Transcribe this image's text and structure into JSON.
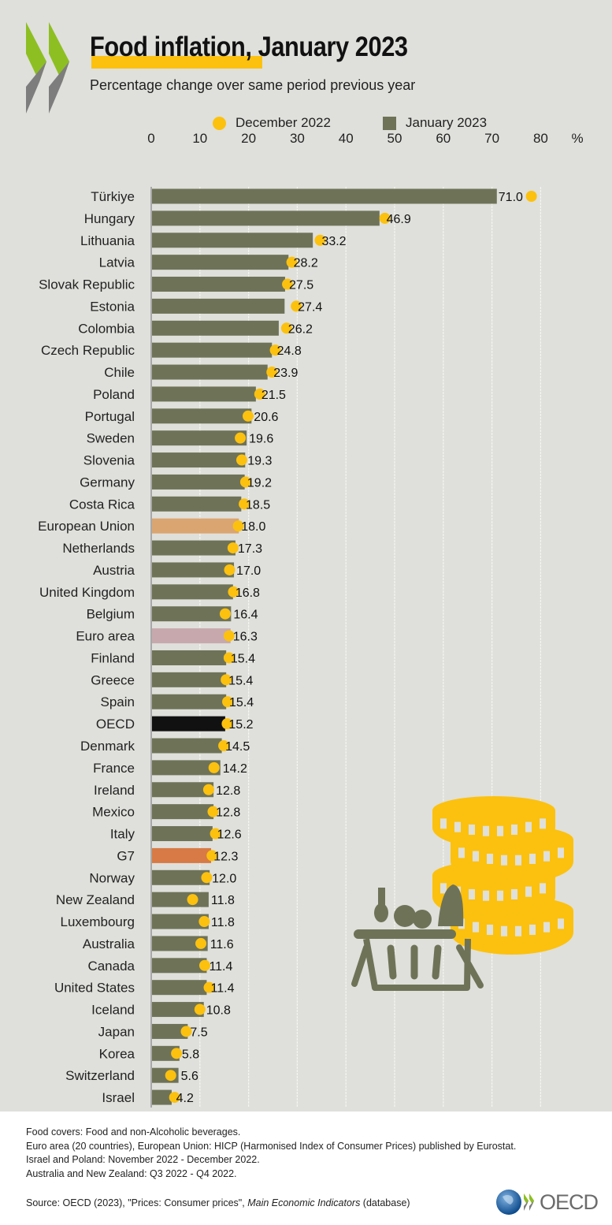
{
  "header": {
    "title": "Food inflation, January 2023",
    "subtitle": "Percentage change over same period previous year"
  },
  "legend": {
    "dec": "December 2022",
    "jan": "January 2023"
  },
  "colors": {
    "background": "#dfe0db",
    "bar": "#6e7358",
    "dot": "#fcc10e",
    "eu": "#dba572",
    "euro_area": "#c7a9ad",
    "oecd": "#111111",
    "g7": "#d87a45"
  },
  "chart_data": {
    "type": "bar",
    "orientation": "horizontal",
    "title": "Food inflation, January 2023",
    "subtitle": "Percentage change over same period previous year",
    "xlabel": "%",
    "xlim": [
      0,
      80
    ],
    "xticks": [
      "0",
      "10",
      "20",
      "30",
      "40",
      "50",
      "60",
      "70",
      "80"
    ],
    "unit_label": "%",
    "grid": true,
    "legend_position": "top",
    "categories": [
      "Türkiye",
      "Hungary",
      "Lithuania",
      "Latvia",
      "Slovak Republic",
      "Estonia",
      "Colombia",
      "Czech Republic",
      "Chile",
      "Poland",
      "Portugal",
      "Sweden",
      "Slovenia",
      "Germany",
      "Costa Rica",
      "European Union",
      "Netherlands",
      "Austria",
      "United Kingdom",
      "Belgium",
      "Euro area",
      "Finland",
      "Greece",
      "Spain",
      "OECD",
      "Denmark",
      "France",
      "Ireland",
      "Mexico",
      "Italy",
      "G7",
      "Norway",
      "New Zealand",
      "Luxembourg",
      "Australia",
      "Canada",
      "United States",
      "Iceland",
      "Japan",
      "Korea",
      "Switzerland",
      "Israel"
    ],
    "highlight": {
      "European Union": "eu",
      "Euro area": "euro_area",
      "OECD": "oecd",
      "G7": "g7"
    },
    "series": [
      {
        "name": "January 2023",
        "type": "bar",
        "values": [
          71.0,
          46.9,
          33.2,
          28.2,
          27.5,
          27.4,
          26.2,
          24.8,
          23.9,
          21.5,
          20.6,
          19.6,
          19.3,
          19.2,
          18.5,
          18.0,
          17.3,
          17.0,
          16.8,
          16.4,
          16.3,
          15.4,
          15.4,
          15.4,
          15.2,
          14.5,
          14.2,
          12.8,
          12.8,
          12.6,
          12.3,
          12.0,
          11.8,
          11.8,
          11.6,
          11.4,
          11.4,
          10.8,
          7.5,
          5.8,
          5.6,
          4.2
        ],
        "labels": [
          "71.0",
          "46.9",
          "33.2",
          "28.2",
          "27.5",
          "27.4",
          "26.2",
          "24.8",
          "23.9",
          "21.5",
          "20.6",
          "19.6",
          "19.3",
          "19.2",
          "18.5",
          "18.0",
          "17.3",
          "17.0",
          "16.8",
          "16.4",
          "16.3",
          "15.4",
          "15.4",
          "15.4",
          "15.2",
          "14.5",
          "14.2",
          "12.8",
          "12.8",
          "12.6",
          "12.3",
          "12.0",
          "11.8",
          "11.8",
          "11.6",
          "11.4",
          "11.4",
          "10.8",
          "7.5",
          "5.8",
          "5.6",
          "4.2"
        ]
      },
      {
        "name": "December 2022",
        "type": "dot",
        "values": [
          78.1,
          48.0,
          34.7,
          28.9,
          28.0,
          29.8,
          27.8,
          25.5,
          24.8,
          22.3,
          19.9,
          18.3,
          18.6,
          19.4,
          19.1,
          17.9,
          16.8,
          16.1,
          16.9,
          15.2,
          16.0,
          16.0,
          15.4,
          15.7,
          15.6,
          14.9,
          12.9,
          11.8,
          12.7,
          13.2,
          12.5,
          11.4,
          8.5,
          10.9,
          10.2,
          11.0,
          11.9,
          10.0,
          7.2,
          5.2,
          4.0,
          4.8
        ]
      }
    ]
  },
  "footer": {
    "notes": [
      "Food covers: Food and non-Alcoholic beverages.",
      "Euro area (20 countries), European Union: HICP (Harmonised Index of Consumer Prices) published by Eurostat.",
      "Israel and Poland: November 2022 - December 2022.",
      "Australia and New Zealand:  Q3 2022 - Q4 2022."
    ],
    "source_prefix": "Source: OECD (2023), \"Prices: Consumer prices\", ",
    "source_italic": "Main Economic Indicators",
    "source_suffix": " (database)",
    "logo_text": "OECD"
  }
}
